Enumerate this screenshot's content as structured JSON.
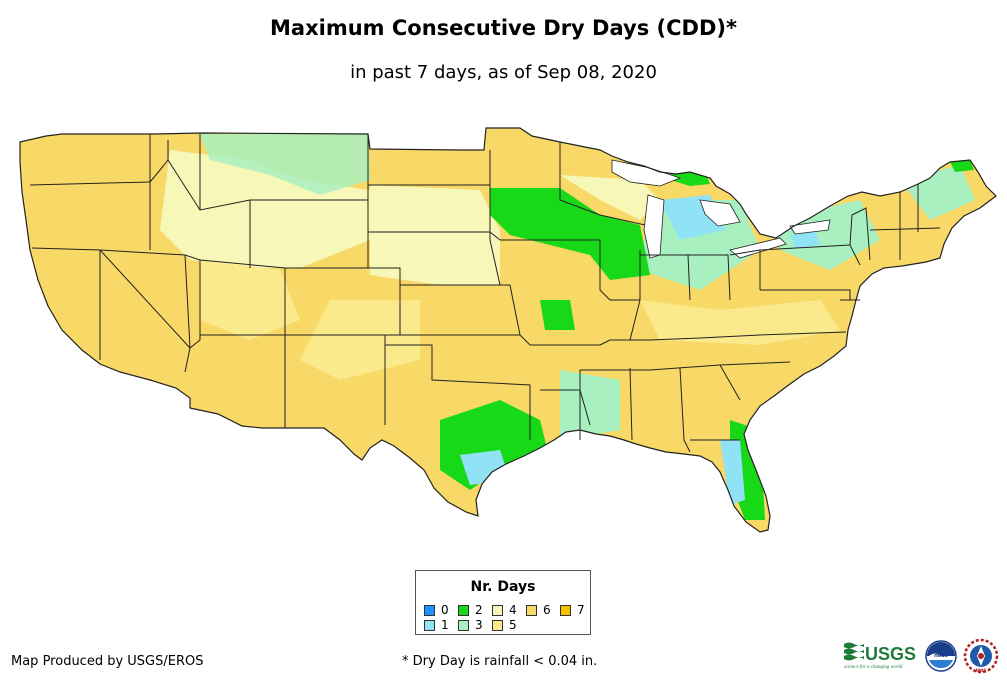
{
  "header": {
    "title": "Maximum Consecutive Dry Days (CDD)*",
    "subtitle": "in past 7 days, as of Sep 08, 2020"
  },
  "legend": {
    "title": "Nr. Days",
    "items": [
      {
        "label": "0",
        "color": "#1E90FF"
      },
      {
        "label": "1",
        "color": "#8FE3F5"
      },
      {
        "label": "2",
        "color": "#17D917"
      },
      {
        "label": "3",
        "color": "#A8F0C0"
      },
      {
        "label": "4",
        "color": "#F7F7B8"
      },
      {
        "label": "5",
        "color": "#FAEA8C"
      },
      {
        "label": "6",
        "color": "#F8D866"
      },
      {
        "label": "7",
        "color": "#F5C000"
      }
    ]
  },
  "map": {
    "region": "Contiguous United States",
    "base_color": "#F8D866",
    "boundary_color": "#222222"
  },
  "footer": {
    "credit": "Map Produced by USGS/EROS",
    "footnote": "* Dry Day is rainfall < 0.04 in.",
    "usgs_text": "USGS",
    "usgs_tagline": "science for a changing world",
    "noaa_text": "noaa",
    "nws_text": "NWS"
  }
}
